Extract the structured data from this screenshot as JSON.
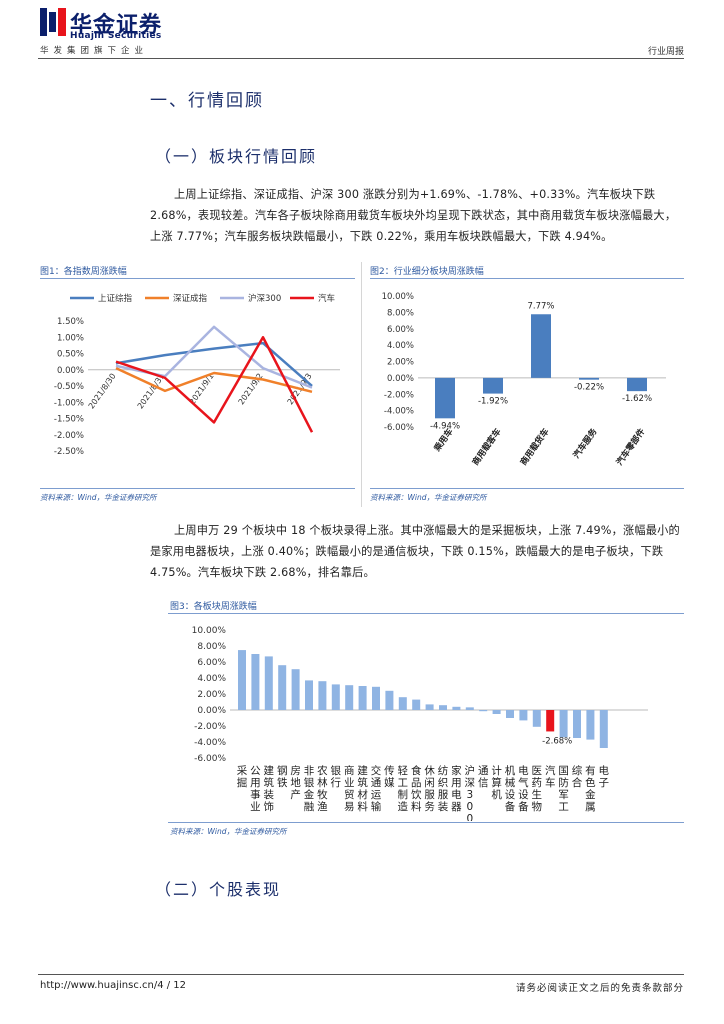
{
  "header": {
    "logo_cn": "华金证券",
    "logo_en": "Huajin Securities",
    "tagline": "华发集团旗下企业",
    "report_type": "行业周报"
  },
  "section1": {
    "title": "一、行情回顾"
  },
  "subsection1": {
    "title": "（一）板块行情回顾"
  },
  "paragraph1": "上周上证综指、深证成指、沪深 300 涨跌分别为+1.69%、-1.78%、+0.33%。汽车板块下跌 2.68%，表现较差。汽车各子板块除商用载货车板块外均呈现下跌状态，其中商用载货车板块涨幅最大，上涨 7.77%；汽车服务板块跌幅最小，下跌 0.22%，乘用车板块跌幅最大，下跌 4.94%。",
  "paragraph2": "上周申万 29 个板块中 18 个板块录得上涨。其中涨幅最大的是采掘板块，上涨 7.49%，涨幅最小的是家用电器板块，上涨 0.40%；跌幅最小的是通信板块，下跌 0.15%，跌幅最大的是电子板块，下跌 4.75%。汽车板块下跌 2.68%，排名靠后。",
  "figure1": {
    "label": "图1：各指数周涨跌幅",
    "source": "资料来源：Wind，华金证券研究所"
  },
  "figure2": {
    "label": "图2：行业细分板块周涨跌幅",
    "source": "资料来源：Wind，华金证券研究所"
  },
  "figure3": {
    "label": "图3：各板块周涨跌幅",
    "source": "资料来源：Wind，华金证券研究所"
  },
  "subsection2": {
    "title": "（二）个股表现"
  },
  "footer": {
    "url": "http://www.huajinsc.cn/4 / 12",
    "disclaimer": "请务必阅读正文之后的免责条款部分"
  },
  "colors": {
    "brand": "#0b1f6b",
    "bar": "#4a7ebf",
    "bar_light": "#8fb4e3",
    "highlight": "#e8141c",
    "orange": "#f0802a",
    "lavender": "#a9b4e0"
  },
  "chart_data": [
    {
      "type": "line",
      "title": "",
      "x": [
        "2021/8/30",
        "2021/8/31",
        "2021/9/1",
        "2021/9/2",
        "2021/9/3"
      ],
      "ylim": [
        -2.5,
        1.5
      ],
      "yticks": [
        "1.50%",
        "1.00%",
        "0.50%",
        "0.00%",
        "-0.50%",
        "-1.00%",
        "-1.50%",
        "-2.00%",
        "-2.50%"
      ],
      "legend_position": "top",
      "series": [
        {
          "name": "上证综指",
          "color": "#4a7ebf",
          "values": [
            0.2,
            0.45,
            0.65,
            0.82,
            -0.5
          ]
        },
        {
          "name": "深证成指",
          "color": "#f0802a",
          "values": [
            0.05,
            -0.65,
            -0.1,
            -0.3,
            -0.68
          ]
        },
        {
          "name": "沪深300",
          "color": "#a9b4e0",
          "values": [
            0.12,
            -0.2,
            1.32,
            0.05,
            -0.55
          ]
        },
        {
          "name": "汽车",
          "color": "#e8141c",
          "values": [
            0.25,
            -0.25,
            -1.62,
            1.0,
            -1.92
          ]
        }
      ]
    },
    {
      "type": "bar",
      "categories": [
        "乘用车",
        "商用载客车",
        "商用载货车",
        "汽车服务",
        "汽车零部件"
      ],
      "values": [
        -4.94,
        -1.92,
        7.77,
        -0.22,
        -1.62
      ],
      "data_labels": [
        "-4.94%",
        "-1.92%",
        "7.77%",
        "-0.22%",
        "-1.62%"
      ],
      "ylim": [
        -6,
        10
      ],
      "yticks": [
        "10.00%",
        "8.00%",
        "6.00%",
        "4.00%",
        "2.00%",
        "0.00%",
        "-2.00%",
        "-4.00%",
        "-6.00%"
      ]
    },
    {
      "type": "bar",
      "categories": [
        "采掘",
        "公用事业",
        "建筑装饰",
        "钢铁",
        "房地产",
        "非银金融",
        "农林牧渔",
        "银行",
        "商业贸易",
        "建筑材料",
        "交通运输",
        "传媒",
        "轻工制造",
        "食品饮料",
        "休闲服务",
        "纺织服装",
        "家用电器",
        "沪深300",
        "通信",
        "计算机",
        "机械设备",
        "电气设备",
        "医药生物",
        "汽车",
        "国防军工",
        "综合",
        "有色金属",
        "电子"
      ],
      "values": [
        7.49,
        7.0,
        6.7,
        5.6,
        5.1,
        3.7,
        3.6,
        3.2,
        3.1,
        3.0,
        2.9,
        2.4,
        1.6,
        1.3,
        0.7,
        0.6,
        0.4,
        0.33,
        -0.15,
        -0.5,
        -1.0,
        -1.3,
        -2.1,
        -2.68,
        -3.4,
        -3.5,
        -3.7,
        -4.75
      ],
      "highlight": "汽车",
      "data_labels": [
        "-2.68%"
      ],
      "ylim": [
        -6,
        10
      ],
      "yticks": [
        "10.00%",
        "8.00%",
        "6.00%",
        "4.00%",
        "2.00%",
        "0.00%",
        "-2.00%",
        "-4.00%",
        "-6.00%"
      ]
    }
  ]
}
